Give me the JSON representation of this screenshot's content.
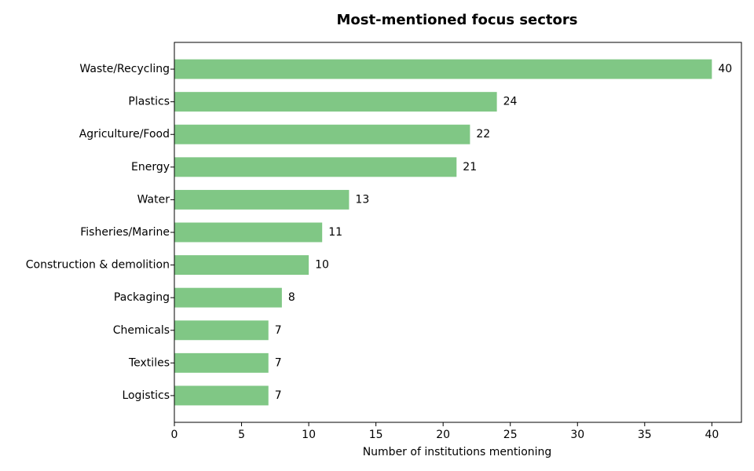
{
  "chart_data": {
    "type": "hbar",
    "title": "Most-mentioned focus sectors",
    "x_label": "Number of institutions mentioning",
    "categories": [
      "Waste/Recycling",
      "Plastics",
      "Agriculture/Food",
      "Energy",
      "Water",
      "Fisheries/Marine",
      "Construction & demolition",
      "Packaging",
      "Chemicals",
      "Textiles",
      "Logistics"
    ],
    "values": [
      40,
      24,
      22,
      21,
      13,
      11,
      10,
      8,
      7,
      7,
      7
    ],
    "color": "#80c785",
    "xlim": [
      0,
      42.2
    ],
    "xticks": [
      0,
      5,
      10,
      15,
      20,
      25,
      30,
      35,
      40
    ],
    "grid": false
  }
}
